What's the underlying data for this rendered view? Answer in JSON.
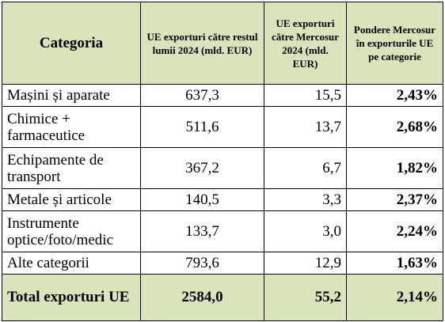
{
  "headers": {
    "category": "Categoria",
    "rest_world": "UE exporturi către restul lumii 2024 (mld. EUR)",
    "mercosur": "UE exporturi către Mercosur 2024 (mld. EUR)",
    "share": "Pondere Mercosur în exporturile UE pe categorie"
  },
  "rows": [
    {
      "category": "Mașini și aparate",
      "rest_world": "637,3",
      "mercosur": "15,5",
      "share": "2,43%"
    },
    {
      "category": "Chimice + farmaceutice",
      "rest_world": "511,6",
      "mercosur": "13,7",
      "share": "2,68%"
    },
    {
      "category": "Echipamente de transport",
      "rest_world": "367,2",
      "mercosur": "6,7",
      "share": "1,82%"
    },
    {
      "category": "Metale și articole",
      "rest_world": "140,5",
      "mercosur": "3,3",
      "share": "2,37%"
    },
    {
      "category": "Instrumente optice/foto/medic",
      "rest_world": "133,7",
      "mercosur": "3,0",
      "share": "2,24%"
    },
    {
      "category": "Alte categorii",
      "rest_world": "793,6",
      "mercosur": "12,9",
      "share": "1,63%"
    }
  ],
  "total": {
    "category": "Total exporturi UE",
    "rest_world": "2584,0",
    "mercosur": "55,2",
    "share": "2,14%"
  },
  "colors": {
    "header_bg": "#d7e4bc",
    "border": "#000000"
  }
}
